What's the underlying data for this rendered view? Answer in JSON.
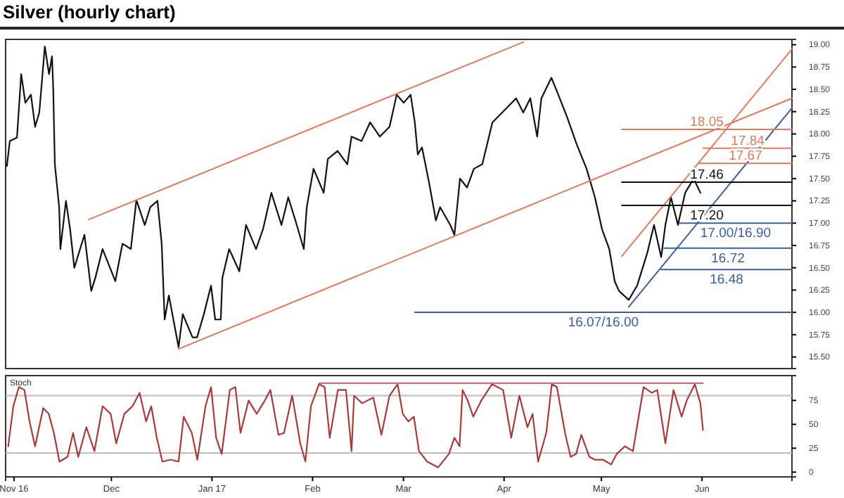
{
  "chart_data": [
    {
      "type": "line",
      "title": "Silver (hourly chart)",
      "xlim": [
        "2016-10-29T10:00",
        "2017-06-28T17:00"
      ],
      "ylim": [
        15.37,
        19.06
      ],
      "yticks": [
        {
          "value": 15.5,
          "label": "15.50"
        },
        {
          "value": 15.75,
          "label": "15.75"
        },
        {
          "value": 16,
          "label": "16.00"
        },
        {
          "value": 16.25,
          "label": "16.25"
        },
        {
          "value": 16.5,
          "label": "16.50"
        },
        {
          "value": 16.75,
          "label": "16.75"
        },
        {
          "value": 17,
          "label": "17.00"
        },
        {
          "value": 17.25,
          "label": "17.25"
        },
        {
          "value": 17.5,
          "label": "17.50"
        },
        {
          "value": 17.75,
          "label": "17.75"
        },
        {
          "value": 18,
          "label": "18.00"
        },
        {
          "value": 18.25,
          "label": "18.25"
        },
        {
          "value": 18.5,
          "label": "18.50"
        },
        {
          "value": 18.75,
          "label": "18.75"
        },
        {
          "value": 19,
          "label": "19.00"
        }
      ],
      "tick_labels": "y",
      "grid": false,
      "legend": false,
      "line_style": "solid",
      "marker": "none",
      "series": [
        {
          "color": "#111111",
          "x": [
            "2016-10-29T19:00",
            "2016-10-30T17:00",
            "2016-11-01T22:00",
            "2016-11-03T05:00",
            "2016-11-04T12:00",
            "2016-11-06T05:00",
            "2016-11-07T12:00",
            "2016-11-08T19:00",
            "2016-11-10T12:00",
            "2016-11-11T19:00",
            "2016-11-12T17:00",
            "2016-11-13T02:00",
            "2016-11-13T14:00",
            "2016-11-14T22:00",
            "2016-11-15T07:00",
            "2016-11-17T00:00",
            "2016-11-18T07:00",
            "2016-11-19T14:00",
            "2016-11-22T17:00",
            "2016-11-24T19:00",
            "2016-11-26T02:00",
            "2016-11-28T07:00",
            "2016-12-02T05:00",
            "2016-12-04T10:00",
            "2016-12-07T00:00",
            "2016-12-08T17:00",
            "2016-12-11T07:00",
            "2016-12-13T00:00",
            "2016-12-15T05:00",
            "2016-12-16T12:00",
            "2016-12-17T10:00",
            "2016-12-18T17:00",
            "2016-12-21T17:00",
            "2016-12-23T00:00",
            "2016-12-26T00:00",
            "2016-12-27T10:00",
            "2016-12-29T12:00",
            "2016-12-31T17:00",
            "2017-01-02T00:00",
            "2017-01-03T17:00",
            "2017-01-04T05:00",
            "2017-01-06T07:00",
            "2017-01-09T10:00",
            "2017-01-11T12:00",
            "2017-01-14T14:00",
            "2017-01-16T17:00",
            "2017-01-19T07:00",
            "2017-01-22T10:00",
            "2017-01-24T12:00",
            "2017-01-26T17:00",
            "2017-01-29T07:00",
            "2017-01-30T05:00",
            "2017-02-01T07:00",
            "2017-02-04T10:00",
            "2017-02-05T17:00",
            "2017-02-08T17:00",
            "2017-02-11T17:00",
            "2017-02-13T00:00",
            "2017-02-16T02:00",
            "2017-02-18T17:00",
            "2017-02-21T17:00",
            "2017-02-24T17:00",
            "2017-02-26T22:00",
            "2017-03-01T02:00",
            "2017-03-03T05:00",
            "2017-03-04T12:00",
            "2017-03-05T10:00",
            "2017-03-06T17:00",
            "2017-03-08T22:00",
            "2017-03-11T00:00",
            "2017-03-12T07:00",
            "2017-03-15T10:00",
            "2017-03-16T17:00",
            "2017-03-18T10:00",
            "2017-03-20T14:00",
            "2017-03-22T17:00",
            "2017-03-25T07:00",
            "2017-03-28T10:00",
            "2017-03-31T10:00",
            "2017-04-04T17:00",
            "2017-04-06T22:00",
            "2017-04-09T02:00",
            "2017-04-11T05:00",
            "2017-04-12T12:00",
            "2017-04-15T14:00",
            "2017-04-17T17:00",
            "2017-04-20T10:00",
            "2017-04-23T10:00",
            "2017-04-26T10:00",
            "2017-04-29T00:00",
            "2017-05-01T05:00",
            "2017-05-03T10:00",
            "2017-05-05T02:00",
            "2017-05-06T10:00",
            "2017-05-09T10:00",
            "2017-05-12T00:00",
            "2017-05-15T02:00",
            "2017-05-17T05:00",
            "2017-05-19T10:00",
            "2017-05-20T17:00",
            "2017-05-22T10:00",
            "2017-05-24T14:00",
            "2017-05-26T19:00",
            "2017-05-29T10:00",
            "2017-05-31T12:00"
          ],
          "values": [
            17.64,
            17.92,
            17.96,
            18.67,
            18.35,
            18.44,
            18.08,
            18.24,
            18.98,
            18.67,
            18.87,
            18.51,
            17.66,
            17.18,
            16.71,
            17.25,
            16.93,
            16.5,
            16.87,
            16.24,
            16.39,
            16.71,
            16.35,
            16.77,
            16.71,
            17.26,
            16.98,
            17.18,
            17.25,
            16.77,
            15.92,
            16.19,
            15.61,
            15.98,
            15.72,
            15.72,
            15.98,
            16.3,
            15.92,
            15.92,
            16.39,
            16.71,
            16.46,
            16.98,
            16.71,
            16.93,
            17.34,
            16.98,
            17.29,
            17.03,
            16.71,
            17.18,
            17.61,
            17.34,
            17.72,
            17.81,
            17.66,
            17.97,
            17.92,
            18.13,
            17.97,
            18.08,
            18.44,
            18.35,
            18.44,
            18.13,
            17.77,
            17.85,
            17.45,
            17.03,
            17.18,
            16.98,
            16.87,
            17.5,
            17.4,
            17.61,
            17.66,
            18.13,
            18.24,
            18.4,
            18.24,
            18.4,
            17.97,
            18.4,
            18.63,
            18.44,
            18.19,
            17.88,
            17.61,
            17.29,
            16.93,
            16.71,
            16.35,
            16.24,
            16.14,
            16.3,
            16.66,
            16.98,
            16.62,
            16.98,
            17.29,
            16.98,
            17.34,
            17.5,
            17.34
          ]
        },
        {
          "color": "#e07a5a",
          "x": [
            "2016-11-24T00:00",
            "2017-04-06T22:00"
          ],
          "values": [
            17.04,
            19.03
          ]
        },
        {
          "color": "#e07a5a",
          "x": [
            "2016-12-21T17:00",
            "2017-06-28T17:00"
          ],
          "values": [
            15.59,
            18.4
          ]
        },
        {
          "color": "#e07a5a",
          "x": [
            "2017-05-07T07:00",
            "2017-06-28T17:00"
          ],
          "values": [
            16.63,
            18.95
          ]
        },
        {
          "color": "#3a5f9a",
          "x": [
            "2017-05-09T10:00",
            "2017-06-28T17:00"
          ],
          "values": [
            16.06,
            18.29
          ]
        },
        {
          "name": "18.05",
          "color": "#e07a5a",
          "x": [
            "2017-05-07T07:00",
            "2017-06-28T17:00"
          ],
          "values": [
            18.05,
            18.05
          ]
        },
        {
          "name": "17.84",
          "color": "#e07a5a",
          "x": [
            "2017-06-01T10:00",
            "2017-06-28T17:00"
          ],
          "values": [
            17.84,
            17.84
          ]
        },
        {
          "name": "17.67",
          "color": "#e07a5a",
          "x": [
            "2017-05-31T02:00",
            "2017-06-28T17:00"
          ],
          "values": [
            17.67,
            17.67
          ]
        },
        {
          "name": "17.46",
          "color": "#111111",
          "x": [
            "2017-05-07T07:00",
            "2017-06-28T17:00"
          ],
          "values": [
            17.46,
            17.46
          ]
        },
        {
          "name": "17.20",
          "color": "#111111",
          "x": [
            "2017-05-07T07:00",
            "2017-06-28T17:00"
          ],
          "values": [
            17.2,
            17.2
          ]
        },
        {
          "name": "17.00/16.90",
          "color": "#3a5f9a",
          "x": [
            "2017-05-25T00:00",
            "2017-06-28T17:00"
          ],
          "values": [
            17.0,
            17.0
          ]
        },
        {
          "name": "16.72",
          "color": "#3a5f9a",
          "x": [
            "2017-05-20T07:00",
            "2017-06-28T17:00"
          ],
          "values": [
            16.72,
            16.72
          ]
        },
        {
          "name": "16.48",
          "color": "#3a5f9a",
          "x": [
            "2017-05-19T10:00",
            "2017-06-28T17:00"
          ],
          "values": [
            16.48,
            16.48
          ]
        },
        {
          "name": "16.07/16.00",
          "color": "#3a5f9a",
          "x": [
            "2017-03-04T12:00",
            "2017-06-28T17:00"
          ],
          "values": [
            16.0,
            16.0
          ]
        }
      ]
    },
    {
      "type": "line",
      "title": "Stoch",
      "xlim": [
        "2016-10-29T10:00",
        "2017-06-28T17:00"
      ],
      "ylim": [
        -5,
        101
      ],
      "xticks": [
        {
          "value": "2016-11-01",
          "label": "Nov 16"
        },
        {
          "value": "2016-12-01",
          "label": "Dec"
        },
        {
          "value": "2017-01-01",
          "label": "Jan 17"
        },
        {
          "value": "2017-02-01",
          "label": "Feb"
        },
        {
          "value": "2017-03-01",
          "label": "Mar"
        },
        {
          "value": "2017-04-01",
          "label": "Apr"
        },
        {
          "value": "2017-05-01",
          "label": "May"
        },
        {
          "value": "2017-06-01",
          "label": "Jun"
        }
      ],
      "yticks": [
        0,
        25,
        50,
        75
      ],
      "grid": false,
      "legend": false,
      "line_style": "solid",
      "marker": "none",
      "ref_lines": [
        {
          "axis": "y",
          "value": 80,
          "color": "#c8b8b8"
        },
        {
          "axis": "y",
          "value": 20,
          "color": "#c8b8b8"
        }
      ],
      "series": [
        {
          "color": "#a83a3a",
          "x": [
            "2016-10-30T05:00",
            "2016-10-31T19:00",
            "2016-11-02T12:00",
            "2016-11-04T05:00",
            "2016-11-05T19:00",
            "2016-11-07T12:00",
            "2016-11-10T00:00",
            "2016-11-11T17:00",
            "2016-11-13T07:00",
            "2016-11-15T00:00",
            "2016-11-17T12:00",
            "2016-11-19T05:00",
            "2016-11-20T19:00",
            "2016-11-23T07:00",
            "2016-11-25T19:00",
            "2016-11-28T07:00",
            "2016-11-30T19:00",
            "2016-12-02T12:00",
            "2016-12-05T00:00",
            "2016-12-07T12:00",
            "2016-12-09T17:00",
            "2016-12-11T17:00",
            "2016-12-13T07:00",
            "2016-12-15T00:00",
            "2016-12-16T17:00",
            "2016-12-19T05:00",
            "2016-12-21T17:00",
            "2016-12-23T07:00",
            "2016-12-25T19:00",
            "2016-12-27T12:00",
            "2016-12-30T00:00",
            "2016-12-31T17:00",
            "2017-01-02T07:00",
            "2017-01-04T00:00",
            "2017-01-06T12:00",
            "2017-01-08T05:00",
            "2017-01-09T19:00",
            "2017-01-12T07:00",
            "2017-01-14T19:00",
            "2017-01-17T07:00",
            "2017-01-19T00:00",
            "2017-01-21T12:00",
            "2017-01-23T05:00",
            "2017-01-25T17:00",
            "2017-01-28T05:00",
            "2017-01-29T19:00",
            "2017-01-31T12:00",
            "2017-02-03T00:00",
            "2017-02-04T17:00",
            "2017-02-06T07:00",
            "2017-02-08T19:00",
            "2017-02-11T07:00",
            "2017-02-13T00:00",
            "2017-02-13T19:00",
            "2017-02-16T07:00",
            "2017-02-19T17:00",
            "2017-02-22T05:00",
            "2017-02-24T17:00",
            "2017-02-27T05:00",
            "2017-02-28T19:00",
            "2017-03-02T12:00",
            "2017-03-04T05:00",
            "2017-03-05T19:00",
            "2017-03-08T07:00",
            "2017-03-11T17:00",
            "2017-03-15T00:00",
            "2017-03-16T17:00",
            "2017-03-18T07:00",
            "2017-03-19T05:00",
            "2017-03-20T19:00",
            "2017-03-22T12:00",
            "2017-03-25T00:00",
            "2017-03-28T07:00",
            "2017-03-31T17:00",
            "2017-04-03T05:00",
            "2017-04-05T17:00",
            "2017-04-08T05:00",
            "2017-04-09T19:00",
            "2017-04-11T12:00",
            "2017-04-14T00:00",
            "2017-04-15T17:00",
            "2017-04-17T07:00",
            "2017-04-19T19:00",
            "2017-04-21T12:00",
            "2017-04-23T05:00",
            "2017-04-24T19:00",
            "2017-04-27T07:00",
            "2017-04-29T00:00",
            "2017-05-01T12:00",
            "2017-05-04T00:00",
            "2017-05-05T17:00",
            "2017-05-08T05:00",
            "2017-05-10T17:00",
            "2017-05-14T00:00",
            "2017-05-16T12:00",
            "2017-05-18T05:00",
            "2017-05-20T17:00",
            "2017-05-23T05:00",
            "2017-05-25T17:00",
            "2017-05-27T07:00",
            "2017-05-29T19:00",
            "2017-05-31T12:00",
            "2017-06-01T07:00"
          ],
          "values": [
            27,
            69,
            89,
            86,
            53,
            27,
            67,
            61,
            41,
            11,
            16,
            41,
            16,
            47,
            22,
            69,
            61,
            30,
            61,
            69,
            83,
            53,
            69,
            36,
            11,
            13,
            11,
            58,
            41,
            13,
            69,
            89,
            36,
            19,
            86,
            89,
            41,
            75,
            61,
            75,
            86,
            39,
            41,
            80,
            30,
            11,
            69,
            92,
            89,
            36,
            86,
            86,
            22,
            80,
            72,
            78,
            39,
            80,
            92,
            61,
            53,
            58,
            22,
            11,
            5,
            19,
            36,
            27,
            86,
            75,
            58,
            75,
            92,
            86,
            36,
            80,
            47,
            61,
            11,
            41,
            92,
            89,
            41,
            16,
            19,
            39,
            16,
            13,
            13,
            8,
            19,
            27,
            22,
            89,
            83,
            86,
            30,
            86,
            58,
            75,
            92,
            72,
            44
          ]
        },
        {
          "color": "#c06060",
          "x": [
            "2017-02-03T00:00",
            "2017-06-01T07:00"
          ],
          "values": [
            93,
            93
          ]
        }
      ]
    }
  ]
}
